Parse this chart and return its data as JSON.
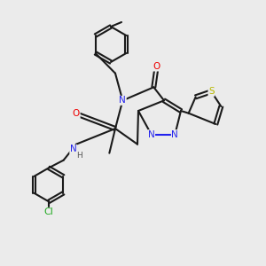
{
  "background_color": "#ebebeb",
  "bond_color": "#1a1a1a",
  "atom_colors": {
    "N": "#2222ee",
    "O": "#ee0000",
    "S": "#b8b800",
    "Cl": "#22aa22",
    "C": "#1a1a1a",
    "H": "#555555"
  },
  "figsize": [
    3.0,
    3.0
  ],
  "dpi": 100
}
